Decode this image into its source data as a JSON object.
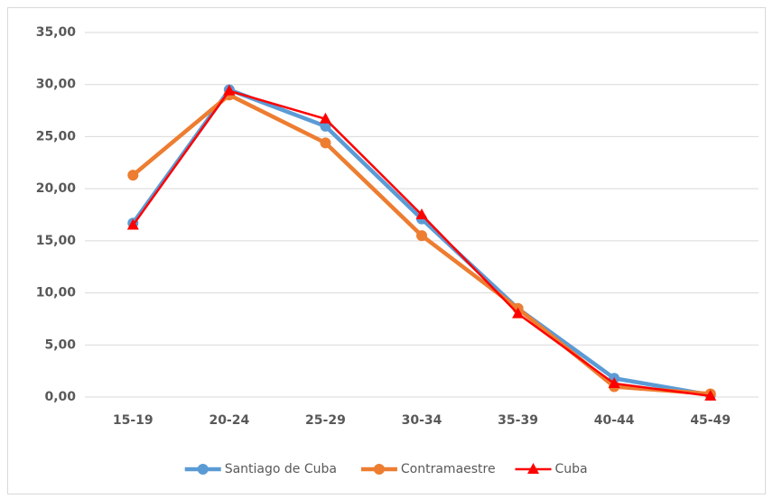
{
  "chart_data": {
    "type": "line",
    "categories": [
      "15-19",
      "20-24",
      "25-29",
      "30-34",
      "35-39",
      "40-44",
      "45-49"
    ],
    "series": [
      {
        "name": "Santiago de Cuba",
        "color": "#5b9bd5",
        "marker": "circle",
        "values": [
          16.7,
          29.5,
          26.0,
          17.1,
          8.5,
          1.8,
          0.2
        ]
      },
      {
        "name": "Contramaestre",
        "color": "#ed7d31",
        "marker": "circle",
        "values": [
          21.3,
          29.0,
          24.4,
          15.5,
          8.5,
          1.0,
          0.3
        ]
      },
      {
        "name": "Cuba",
        "color": "#ff0000",
        "marker": "triangle",
        "values": [
          16.5,
          29.4,
          26.7,
          17.5,
          8.0,
          1.3,
          0.1
        ]
      }
    ],
    "ylim": [
      0,
      35
    ],
    "yticks": [
      {
        "value": 0,
        "label": "0,00"
      },
      {
        "value": 5,
        "label": "5,00"
      },
      {
        "value": 10,
        "label": "10,00"
      },
      {
        "value": 15,
        "label": "15,00"
      },
      {
        "value": 20,
        "label": "20,00"
      },
      {
        "value": 25,
        "label": "25,00"
      },
      {
        "value": 30,
        "label": "30,00"
      },
      {
        "value": 35,
        "label": "35,00"
      }
    ],
    "grid": true,
    "legend": "bottom"
  }
}
